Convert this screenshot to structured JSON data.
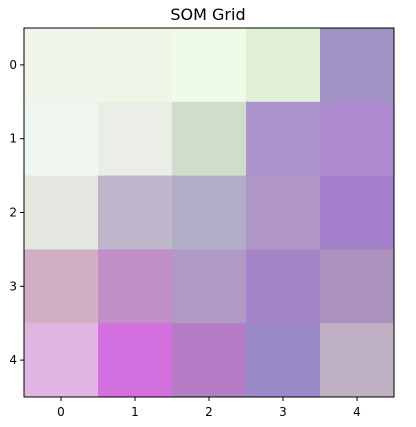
{
  "chart_data": {
    "type": "heatmap",
    "title": "SOM Grid",
    "xlabel": "",
    "ylabel": "",
    "x_ticks": [
      "0",
      "1",
      "2",
      "3",
      "4"
    ],
    "y_ticks": [
      "0",
      "1",
      "2",
      "3",
      "4"
    ],
    "grid": false,
    "cells": [
      [
        "#f0f5ec",
        "#eff6e8",
        "#f0fae9",
        "#e0f0d6",
        "#a092c5"
      ],
      [
        "#f0f6f0",
        "#ebeee6",
        "#d1dccb",
        "#ac94cc",
        "#ae8bcf"
      ],
      [
        "#e4e8e1",
        "#beb6ca",
        "#b2adc7",
        "#b097c5",
        "#a37fcb"
      ],
      [
        "#d2afc4",
        "#c18fc7",
        "#b09ac4",
        "#a584c7",
        "#ab93bd"
      ],
      [
        "#e1b5e2",
        "#d46fe0",
        "#b67cc6",
        "#9a8ac7",
        "#bfb0c4"
      ]
    ]
  }
}
